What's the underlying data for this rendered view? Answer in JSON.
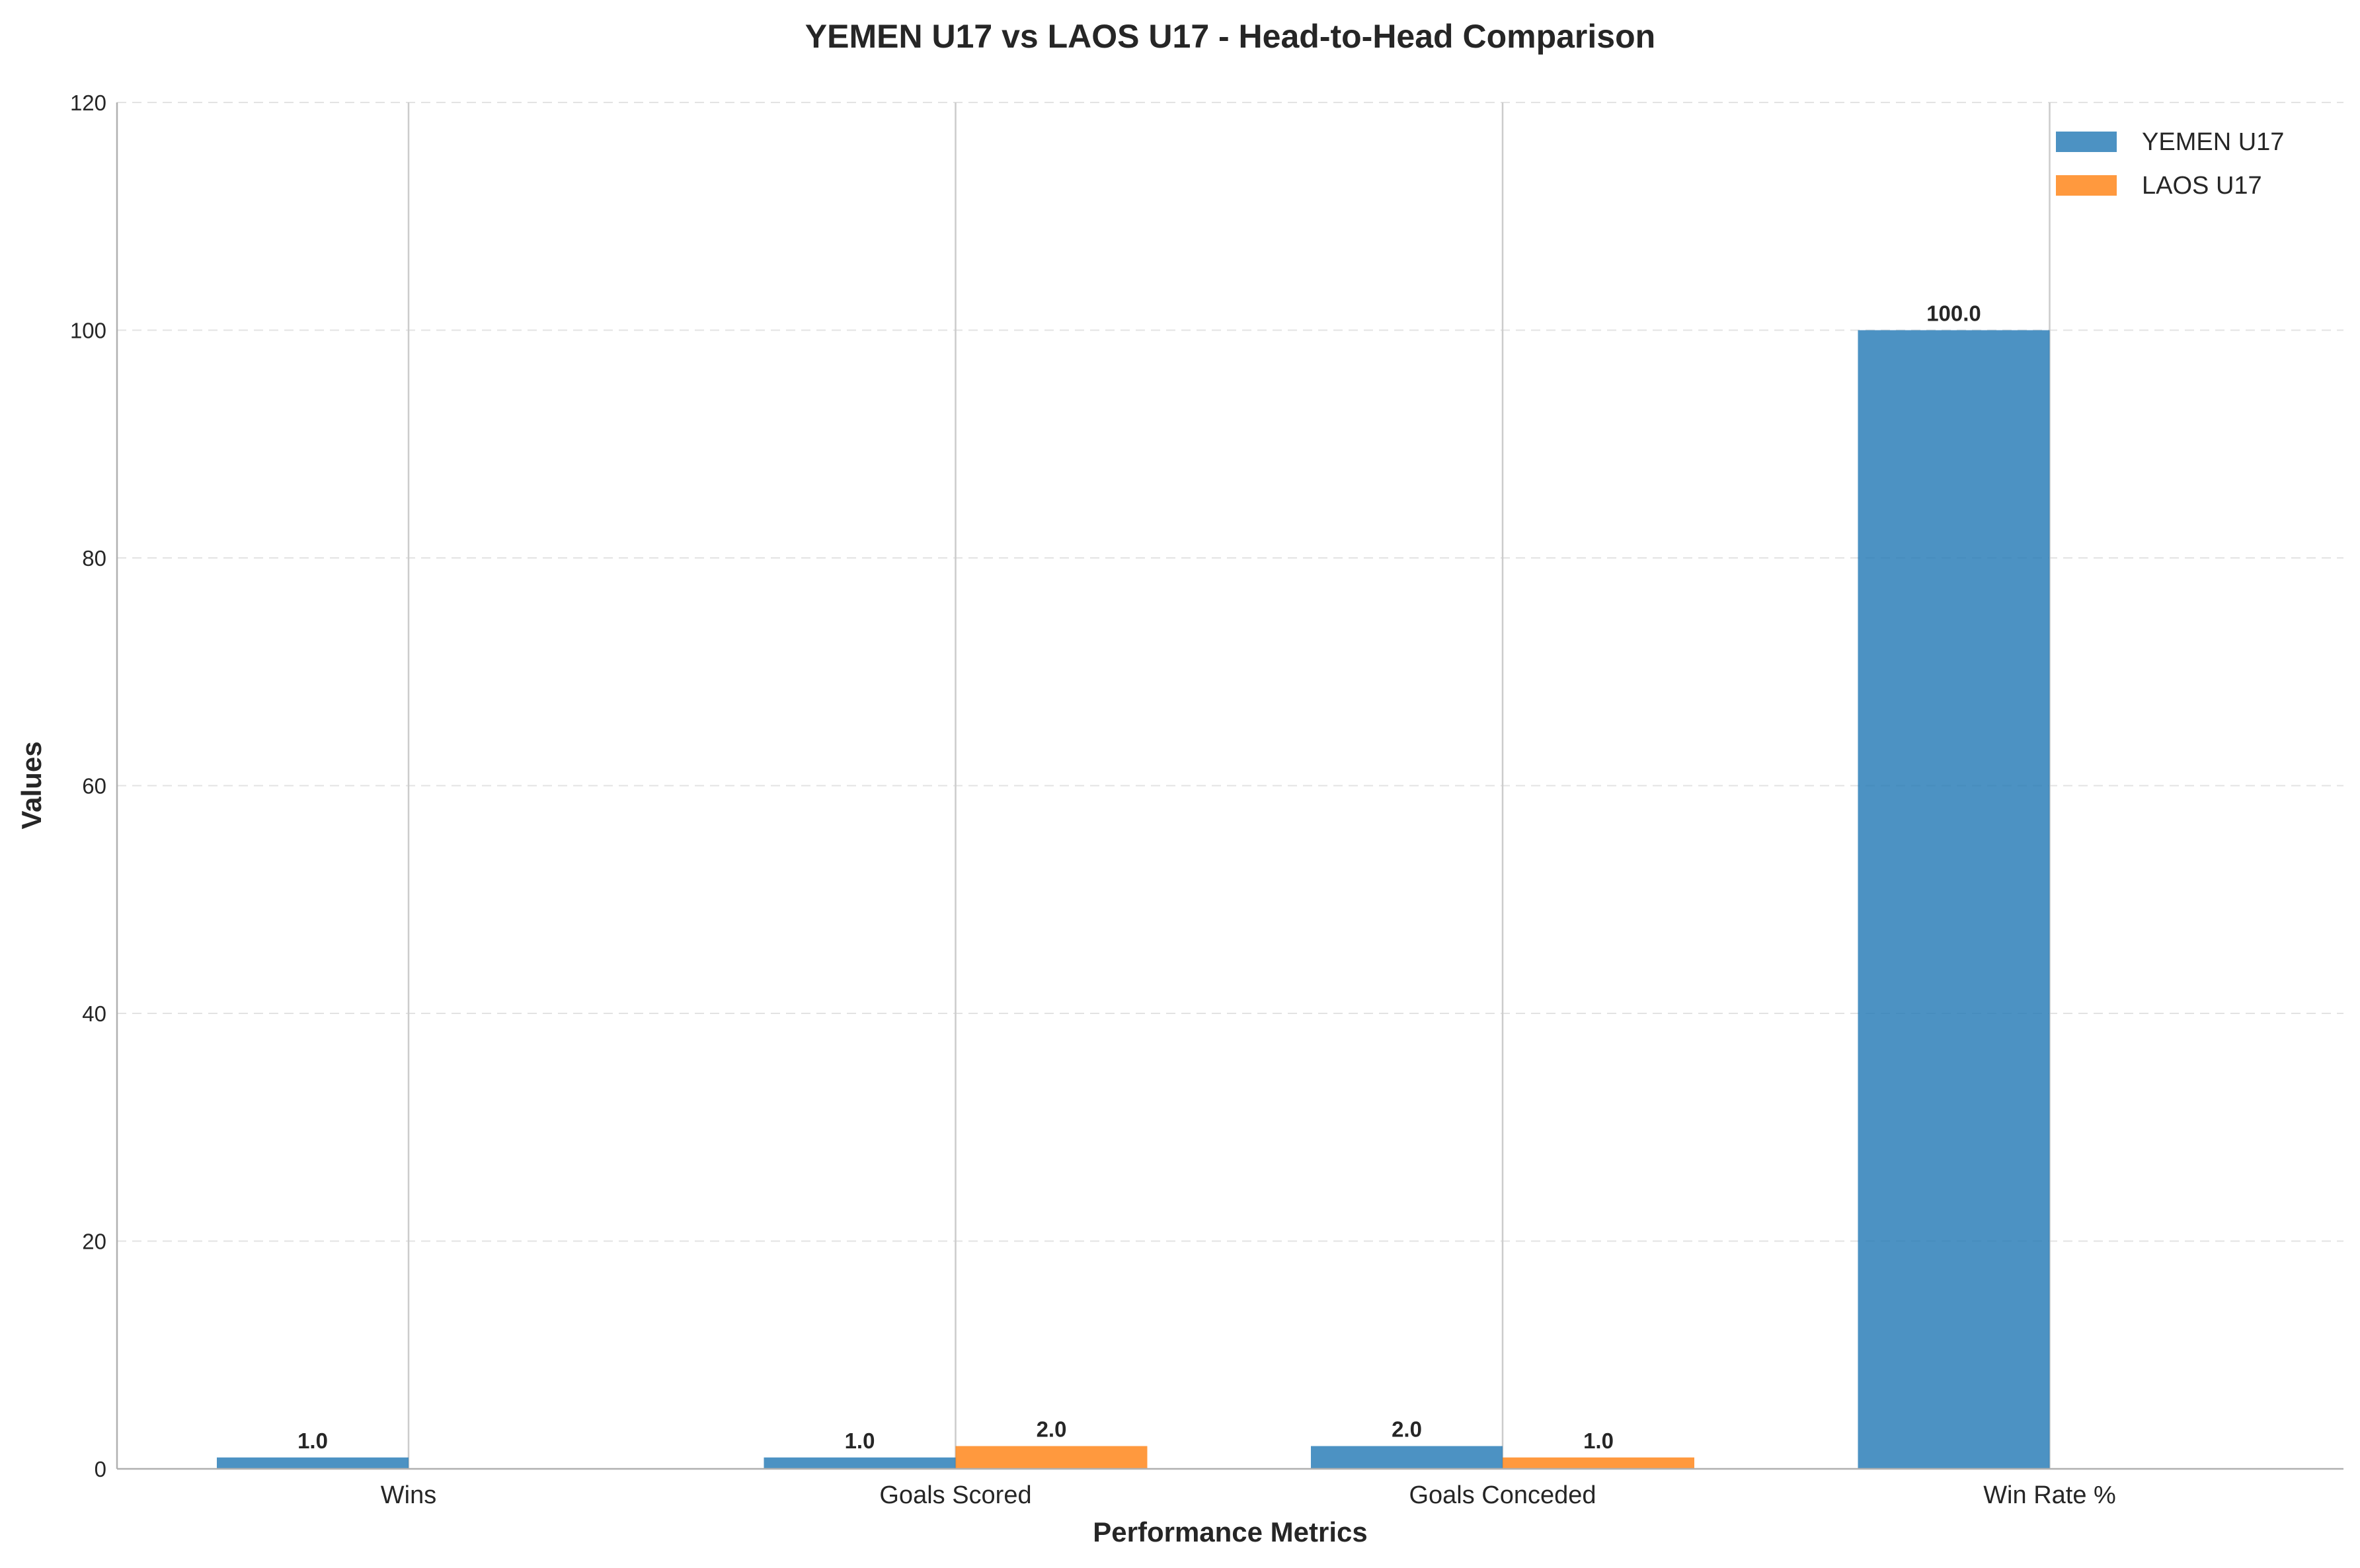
{
  "chart_data": {
    "type": "bar",
    "title": "YEMEN U17 vs LAOS U17 - Head-to-Head Comparison",
    "xlabel": "Performance Metrics",
    "ylabel": "Values",
    "categories": [
      "Wins",
      "Goals Scored",
      "Goals Conceded",
      "Win Rate %"
    ],
    "series": [
      {
        "name": "YEMEN U17",
        "color": "#1f77b4",
        "values": [
          1.0,
          1.0,
          2.0,
          100.0
        ],
        "labels": [
          "1.0",
          "1.0",
          "2.0",
          "100.0"
        ]
      },
      {
        "name": "LAOS U17",
        "color": "#ff7f0e",
        "values": [
          0,
          2.0,
          1.0,
          0
        ],
        "labels": [
          "",
          "2.0",
          "1.0",
          ""
        ]
      }
    ],
    "ylim": [
      0,
      120
    ],
    "yticks": [
      0,
      20,
      40,
      60,
      80,
      100,
      120
    ],
    "grid": "y-dashed",
    "legend_position": "top-right"
  }
}
